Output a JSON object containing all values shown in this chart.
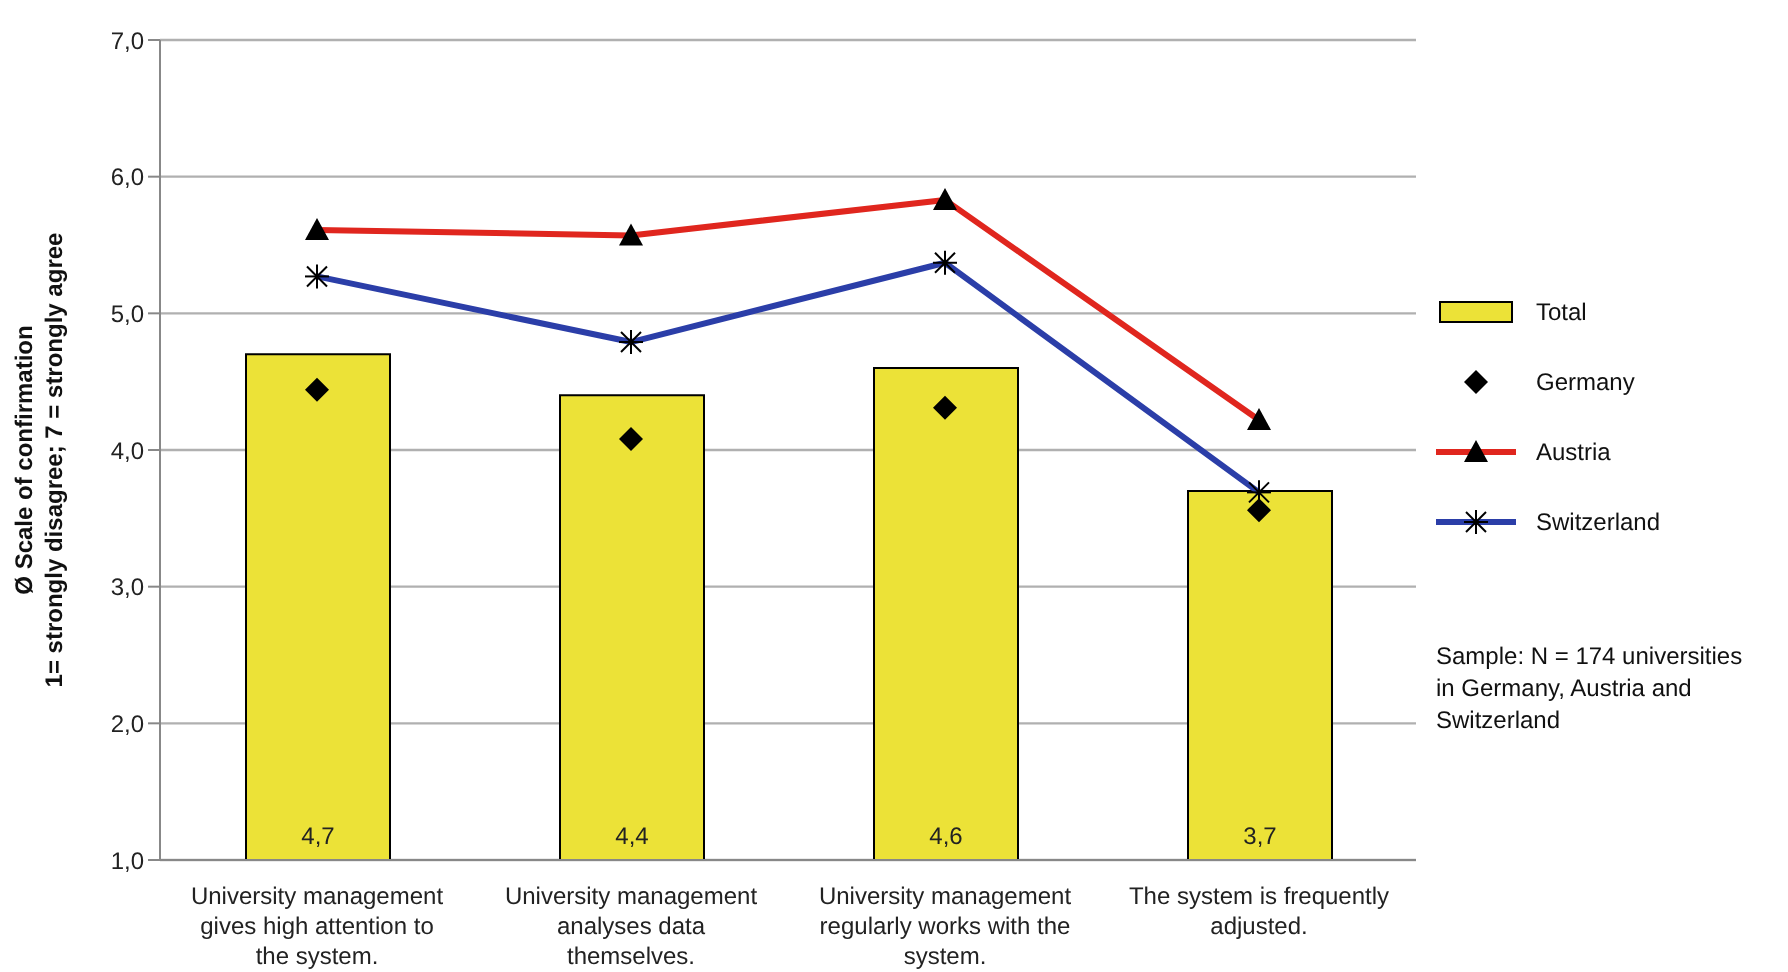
{
  "chart_data": {
    "type": "bar",
    "ylabel": "Ø Scale of confirmation\n1= strongly disagree; 7 = strongly agree",
    "categories": [
      "University management gives high attention to the system.",
      "University management analyses data themselves.",
      "University management regularly works with the system.",
      "The system is frequently adjusted."
    ],
    "series": [
      {
        "name": "Total",
        "color": "#ece237",
        "values": [
          4.7,
          4.4,
          4.6,
          3.7
        ],
        "value_labels": [
          "4,7",
          "4,4",
          "4,6",
          "3,7"
        ]
      },
      {
        "name": "Germany",
        "type": "scatter",
        "color": "#000000",
        "marker": "diamond",
        "x": [
          "University management gives high attention to the system.",
          "University management analyses data themselves.",
          "University management regularly works with the system.",
          "The system is frequently adjusted."
        ],
        "values": [
          4.44,
          4.08,
          4.31,
          3.56
        ]
      },
      {
        "name": "Austria",
        "type": "line",
        "color": "#e0261e",
        "marker": "triangle",
        "values": [
          5.61,
          5.57,
          5.83,
          4.22
        ]
      },
      {
        "name": "Switzerland",
        "type": "line",
        "color": "#2b3ea8",
        "marker": "cross",
        "values": [
          5.27,
          4.79,
          5.37,
          3.69
        ]
      }
    ],
    "ylim": [
      1,
      7
    ],
    "yticks": [
      {
        "value": 1,
        "label": "1,0"
      },
      {
        "value": 2,
        "label": "2,0"
      },
      {
        "value": 3,
        "label": "3,0"
      },
      {
        "value": 4,
        "label": "4,0"
      },
      {
        "value": 5,
        "label": "5,0"
      },
      {
        "value": 6,
        "label": "6,0"
      },
      {
        "value": 7,
        "label": "7,0"
      }
    ],
    "grid": "y",
    "legend": "right",
    "annotations": [
      "Sample: N = 174 universities in Germany, Austria and Switzerland"
    ]
  }
}
